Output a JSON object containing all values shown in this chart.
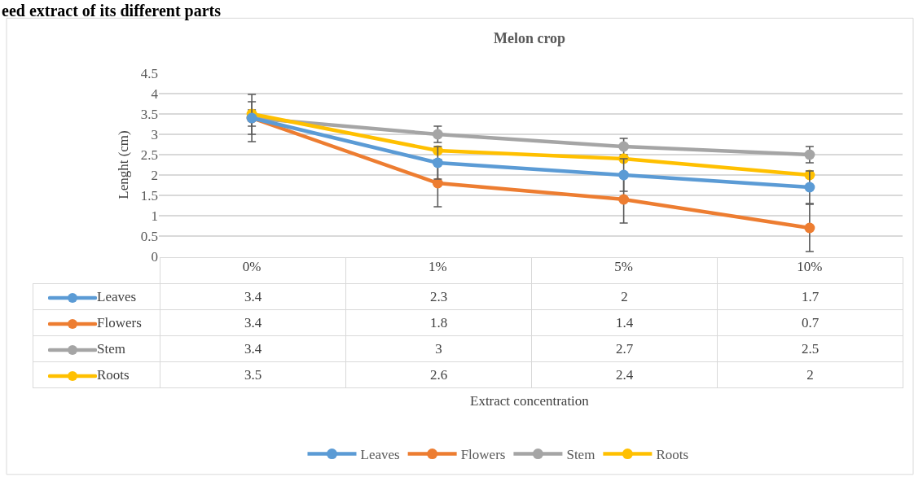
{
  "chart_data": {
    "type": "line",
    "title": "Melon crop",
    "ylabel": "Lenght (cm)",
    "annotations": [
      "eed extract of its different parts",
      "Extract concentration"
    ],
    "categories": [
      "0%",
      "1%",
      "5%",
      "10%"
    ],
    "series": [
      {
        "name": "Leaves",
        "color": "#5b9bd5",
        "values": [
          3.4,
          2.3,
          2,
          1.7
        ],
        "errors": [
          0.4,
          0.4,
          0.4,
          0.4
        ]
      },
      {
        "name": "Flowers",
        "color": "#ed7d31",
        "values": [
          3.4,
          1.8,
          1.4,
          0.7
        ],
        "errors": [
          0.58,
          0.58,
          0.58,
          0.58
        ]
      },
      {
        "name": "Stem",
        "color": "#a5a5a5",
        "values": [
          3.4,
          3,
          2.7,
          2.5
        ],
        "errors": [
          0.2,
          0.2,
          0.2,
          0.2
        ]
      },
      {
        "name": "Roots",
        "color": "#ffc000",
        "values": [
          3.5,
          2.6,
          2.4,
          2
        ]
      }
    ],
    "ylim": [
      0,
      4.5
    ],
    "yticks": [
      0,
      0.5,
      1,
      1.5,
      2,
      2.5,
      3,
      3.5,
      4,
      4.5
    ],
    "grid": "y",
    "legend": "bottom",
    "marker": "circle",
    "line_style": "solid",
    "data_labels": true
  }
}
